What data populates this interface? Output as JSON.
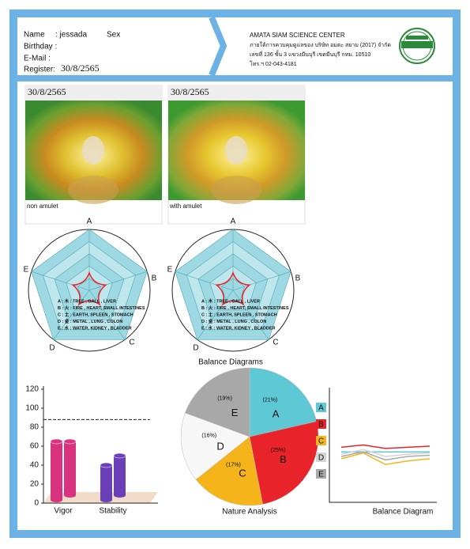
{
  "header": {
    "name_label": "Name",
    "name": ": jessada",
    "sex": "Sex",
    "birthday": "Birthday :",
    "email": "E-Mail :",
    "register_label": "Register:",
    "register": "30/8/2565",
    "center": "AMATA SIAM SCIENCE CENTER",
    "line1": "ภายใต้การควบคุมดูแลของ บริษัท อมตะ สยาม (2017) จำกัด",
    "line2": "เลขที่ 136 ชั้น 3 แขวงมีนบุรี เขตมีนบุรี กทม. 10510",
    "line3": "โทร.ฯ 02-043-4181"
  },
  "aura": [
    {
      "date": "30/8/2565",
      "caption": "non amulet"
    },
    {
      "date": "30/8/2565",
      "caption": "with amulet"
    }
  ],
  "radar": {
    "axes": [
      "A",
      "B",
      "C",
      "D",
      "E"
    ],
    "legend": [
      "A : 木 : TREE , GALL , LIVER",
      "B : 火 : FIRE , HEART, SMALL INTESTINES",
      "C : 土 : EARTH, SPLEEN , STOMACH",
      "D : 金 : METAL , LUNG , COLON",
      "E : 水 : WATER, KIDNEY , BLADDER"
    ],
    "title": "Balance Diagrams"
  },
  "chart_data": [
    {
      "type": "bar",
      "categories": [
        "Vigor",
        "Stability"
      ],
      "colors": [
        "#d9337f",
        "#6a3fb8"
      ],
      "series": [
        {
          "values": [
            65,
            40
          ]
        },
        {
          "values": [
            60,
            45
          ]
        }
      ],
      "ylim": [
        0,
        120
      ],
      "yticks": [
        0,
        20,
        40,
        60,
        80,
        100,
        120
      ],
      "reference_line": 88
    },
    {
      "type": "pie",
      "title": "Nature Analysis",
      "categories": [
        "A",
        "B",
        "C",
        "D",
        "E"
      ],
      "values": [
        21,
        25,
        17,
        16,
        19
      ],
      "value_labels": [
        "(21%)",
        "(25%)",
        "(17%)",
        "(16%)",
        "(19%)"
      ],
      "colors": [
        "#5ec8d4",
        "#e8232a",
        "#f4b41a",
        "#f7f7f7",
        "#a8a8a8"
      ]
    },
    {
      "type": "line",
      "title": "Balance Diagram",
      "categories": [
        null,
        null,
        null,
        null,
        null
      ],
      "ylim": [
        0,
        100
      ],
      "series": [
        {
          "name": "A",
          "color": "#5ec8d4",
          "values": [
            44,
            44,
            44,
            44,
            44
          ]
        },
        {
          "name": "B",
          "color": "#e8232a",
          "values": [
            48,
            50,
            47,
            48,
            49
          ]
        },
        {
          "name": "C",
          "color": "#f4b41a",
          "values": [
            38,
            43,
            33,
            36,
            38
          ]
        },
        {
          "name": "D",
          "color": "#d4d4d4",
          "values": [
            42,
            46,
            40,
            42,
            43
          ]
        },
        {
          "name": "E",
          "color": "#a8a8a8",
          "values": [
            40,
            44,
            37,
            40,
            41
          ]
        }
      ]
    }
  ]
}
